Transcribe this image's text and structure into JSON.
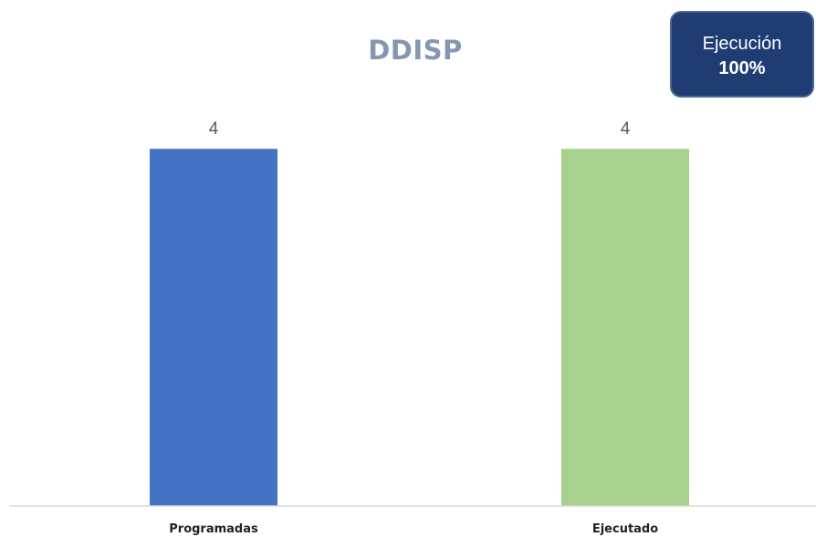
{
  "chart_data": {
    "type": "bar",
    "title": "DDISP",
    "categories": [
      "Programadas",
      "Ejecutado"
    ],
    "values": [
      4,
      4
    ],
    "colors": [
      "#4472c4",
      "#a9d18e"
    ],
    "ylim": [
      0,
      4.85
    ],
    "grid": false,
    "legend": "none",
    "show_data_labels": true
  },
  "badge": {
    "label": "Ejecución",
    "value": "100%",
    "background": "#1f3d73"
  }
}
